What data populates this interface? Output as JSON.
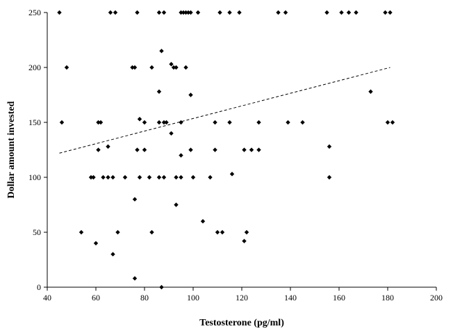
{
  "chart_data": {
    "type": "scatter",
    "title": "",
    "xlabel": "Testosterone (pg/ml)",
    "ylabel": "Dollar amount invested",
    "xlim": [
      40,
      200
    ],
    "ylim": [
      0,
      250
    ],
    "x_ticks": [
      "40",
      "60",
      "80",
      "100",
      "120",
      "140",
      "160",
      "180",
      "200"
    ],
    "y_ticks": [
      "0",
      "50",
      "100",
      "150",
      "200",
      "250"
    ],
    "grid": false,
    "legend": "none",
    "marker_color": "#000000",
    "trendline": {
      "style": "dashed",
      "x": [
        45,
        181
      ],
      "y": [
        122,
        200
      ]
    },
    "series": [
      {
        "points": [
          [
            45,
            250
          ],
          [
            66,
            250
          ],
          [
            68,
            250
          ],
          [
            77,
            250
          ],
          [
            86,
            250
          ],
          [
            88,
            250
          ],
          [
            95,
            250
          ],
          [
            96,
            250
          ],
          [
            97,
            250
          ],
          [
            98,
            250
          ],
          [
            99,
            250
          ],
          [
            102,
            250
          ],
          [
            111,
            250
          ],
          [
            115,
            250
          ],
          [
            119,
            250
          ],
          [
            135,
            250
          ],
          [
            138,
            250
          ],
          [
            155,
            250
          ],
          [
            161,
            250
          ],
          [
            164,
            250
          ],
          [
            167,
            250
          ],
          [
            179,
            250
          ],
          [
            181,
            250
          ],
          [
            87,
            215
          ],
          [
            48,
            200
          ],
          [
            75,
            200
          ],
          [
            76,
            200
          ],
          [
            83,
            200
          ],
          [
            91,
            203
          ],
          [
            92,
            200
          ],
          [
            93,
            200
          ],
          [
            97,
            200
          ],
          [
            86,
            178
          ],
          [
            173,
            178
          ],
          [
            99,
            175
          ],
          [
            46,
            150
          ],
          [
            61,
            150
          ],
          [
            62,
            150
          ],
          [
            78,
            153
          ],
          [
            80,
            150
          ],
          [
            86,
            150
          ],
          [
            88,
            150
          ],
          [
            89,
            150
          ],
          [
            95,
            150
          ],
          [
            109,
            150
          ],
          [
            115,
            150
          ],
          [
            127,
            150
          ],
          [
            139,
            150
          ],
          [
            145,
            150
          ],
          [
            180,
            150
          ],
          [
            182,
            150
          ],
          [
            91,
            140
          ],
          [
            61,
            125
          ],
          [
            65,
            128
          ],
          [
            77,
            125
          ],
          [
            80,
            125
          ],
          [
            95,
            120
          ],
          [
            99,
            125
          ],
          [
            109,
            125
          ],
          [
            121,
            125
          ],
          [
            124,
            125
          ],
          [
            127,
            125
          ],
          [
            156,
            128
          ],
          [
            116,
            103
          ],
          [
            58,
            100
          ],
          [
            59,
            100
          ],
          [
            63,
            100
          ],
          [
            65,
            100
          ],
          [
            67,
            100
          ],
          [
            72,
            100
          ],
          [
            78,
            100
          ],
          [
            82,
            100
          ],
          [
            86,
            100
          ],
          [
            88,
            100
          ],
          [
            93,
            100
          ],
          [
            95,
            100
          ],
          [
            100,
            100
          ],
          [
            107,
            100
          ],
          [
            156,
            100
          ],
          [
            76,
            80
          ],
          [
            93,
            75
          ],
          [
            104,
            60
          ],
          [
            54,
            50
          ],
          [
            69,
            50
          ],
          [
            83,
            50
          ],
          [
            110,
            50
          ],
          [
            112,
            50
          ],
          [
            122,
            50
          ],
          [
            121,
            42
          ],
          [
            60,
            40
          ],
          [
            67,
            30
          ],
          [
            76,
            8
          ],
          [
            87,
            0
          ]
        ]
      }
    ]
  }
}
